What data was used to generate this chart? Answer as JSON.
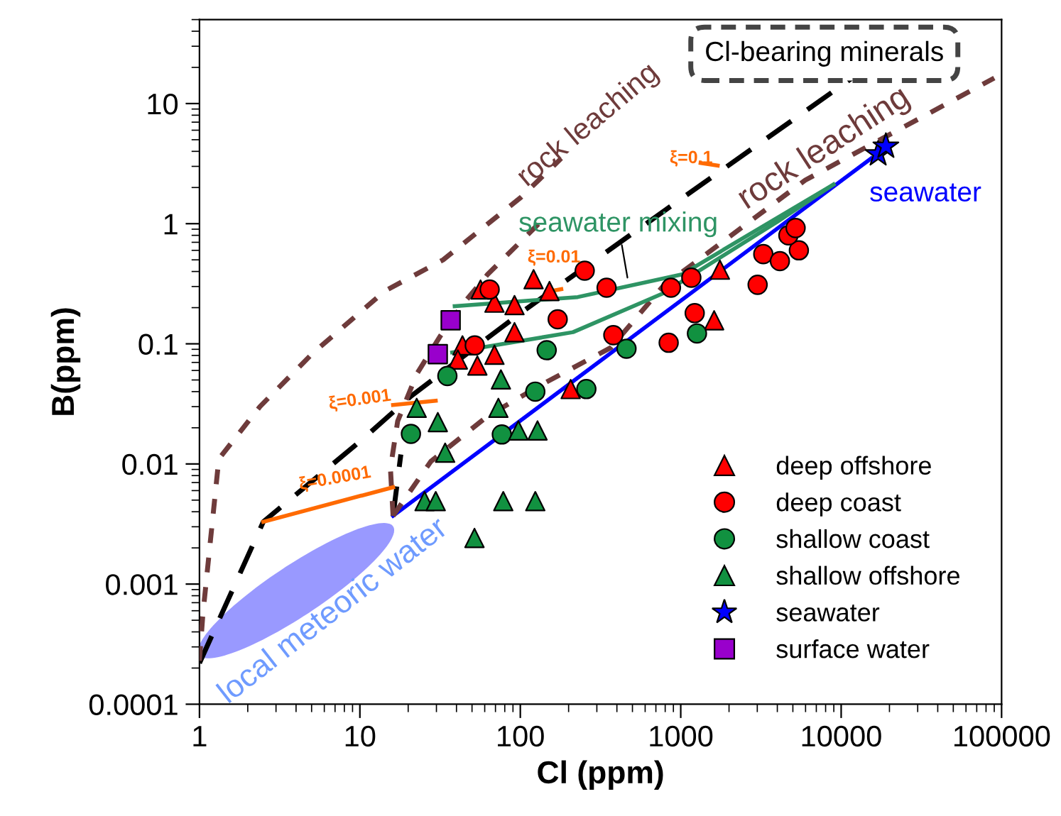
{
  "chart_data": {
    "type": "scatter",
    "xlabel": "Cl (ppm)",
    "ylabel": "B(ppm)",
    "log": "xy",
    "xlim": [
      1,
      100000
    ],
    "ylim": [
      0.0001,
      50
    ],
    "xticks": [
      1,
      10,
      100,
      1000,
      10000,
      100000
    ],
    "yticks": [
      0.0001,
      0.001,
      0.01,
      0.1,
      1,
      10
    ],
    "legend": "bottom right",
    "series": [
      {
        "type": "line",
        "color": "#0000ff",
        "line_style": "solid",
        "x": [
          16.1,
          15400
        ],
        "values": [
          0.0037,
          3.5
        ]
      },
      {
        "type": "line",
        "color": "#000000",
        "line_style": "dashed",
        "x": [
          1,
          2.5,
          10.7,
          21,
          100,
          1000,
          11700
        ],
        "values": [
          0.00022,
          0.0033,
          0.0166,
          0.037,
          0.18,
          1.6,
          16.3
        ]
      },
      {
        "type": "line",
        "color": "#000000",
        "line_style": "dashed",
        "x": [
          16.1,
          18
        ],
        "values": [
          0.0037,
          0.012
        ]
      },
      {
        "type": "line",
        "color": "#6e3b3b",
        "line_style": "dotted",
        "x": [
          1,
          1.05,
          1.32,
          2.38,
          5.06,
          14.3,
          33,
          101,
          180
        ],
        "values": [
          0.00023,
          0.00056,
          0.011,
          0.03,
          0.083,
          0.275,
          0.5,
          1.66,
          3.5
        ]
      },
      {
        "type": "line",
        "color": "#6e3b3b",
        "line_style": "dotted",
        "x": [
          16.1,
          15.5,
          17.2,
          22.6,
          31.7,
          44.6,
          62.5,
          140
        ],
        "values": [
          0.0037,
          0.0092,
          0.0227,
          0.056,
          0.116,
          0.22,
          0.378,
          1.1
        ]
      },
      {
        "type": "line",
        "color": "#6e3b3b",
        "line_style": "dotted",
        "x": [
          16.1,
          27.7,
          62.5,
          141,
          367,
          773,
          5960,
          90000
        ],
        "values": [
          0.0037,
          0.0105,
          0.025,
          0.047,
          0.093,
          0.3,
          2.3,
          16.3
        ]
      },
      {
        "type": "line",
        "color": "#2e9464",
        "line_style": "solid",
        "x": [
          39,
          228,
          1016,
          8960
        ],
        "values": [
          0.206,
          0.245,
          0.378,
          2.12
        ]
      },
      {
        "type": "line",
        "color": "#2e9464",
        "line_style": "solid",
        "x": [
          37.6,
          213,
          775,
          3960,
          8960
        ],
        "values": [
          0.0848,
          0.125,
          0.263,
          1.03,
          2.12
        ]
      },
      {
        "type": "line",
        "color": "#ff6a00",
        "line_style": "solid",
        "x": [
          2.5,
          16.1
        ],
        "values": [
          0.0033,
          0.0064
        ]
      },
      {
        "type": "line",
        "color": "#ff6a00",
        "line_style": "solid",
        "x": [
          16.1,
          29.7
        ],
        "values": [
          0.031,
          0.0336
        ]
      },
      {
        "type": "line",
        "color": "#ff6a00",
        "line_style": "solid",
        "x": [
          145,
          180
        ],
        "values": [
          0.27,
          0.285
        ]
      },
      {
        "type": "line",
        "color": "#ff6a00",
        "line_style": "solid",
        "x": [
          1330,
          1700
        ],
        "values": [
          3.2,
          3.05
        ]
      },
      {
        "type": "scatter",
        "name": "deep offshore",
        "marker": "triangle",
        "color": "#ff0000",
        "x": [
          121,
          56.5,
          69,
          92,
          152,
          92,
          43.6,
          69,
          40.8,
          54,
          206,
          1755,
          1615
        ],
        "values": [
          0.345,
          0.283,
          0.22,
          0.21,
          0.275,
          0.125,
          0.097,
          0.081,
          0.074,
          0.066,
          0.042,
          0.414,
          0.157
        ]
      },
      {
        "type": "scatter",
        "name": "deep coast",
        "marker": "circle",
        "color": "#ff0000",
        "x": [
          64.4,
          252,
          345,
          171,
          380,
          52,
          841,
          869,
          1164,
          1222,
          3015,
          3270,
          4150,
          5450,
          4690,
          5200
        ],
        "values": [
          0.283,
          0.406,
          0.293,
          0.16,
          0.118,
          0.097,
          0.102,
          0.293,
          0.355,
          0.18,
          0.31,
          0.558,
          0.488,
          0.6,
          0.8,
          0.92
        ]
      },
      {
        "type": "scatter",
        "name": "shallow coast",
        "marker": "circle",
        "color": "#119140",
        "x": [
          35.1,
          146,
          459,
          124,
          258,
          20.8,
          76.7,
          1262
        ],
        "values": [
          0.054,
          0.0885,
          0.091,
          0.04,
          0.042,
          0.0178,
          0.0176,
          0.122
        ]
      },
      {
        "type": "scatter",
        "name": "shallow offshore",
        "marker": "triangle",
        "color": "#119140",
        "x": [
          22.6,
          30.6,
          34,
          75.7,
          73,
          97.3,
          128,
          25.3,
          29.7,
          78.3,
          124,
          51.8
        ],
        "values": [
          0.0293,
          0.0223,
          0.0124,
          0.0505,
          0.0293,
          0.019,
          0.019,
          0.0049,
          0.0049,
          0.0049,
          0.0049,
          0.00242
        ]
      },
      {
        "type": "scatter",
        "name": "seawater",
        "marker": "star",
        "color": "#0000ff",
        "x": [
          17000,
          19000
        ],
        "values": [
          3.8,
          4.4
        ]
      },
      {
        "type": "scatter",
        "name": "surface water",
        "marker": "square",
        "color": "#9900cc",
        "x": [
          36.8,
          30.6
        ],
        "values": [
          0.157,
          0.082
        ]
      }
    ],
    "annotations": [
      "rock leaching",
      "rock leaching",
      {
        "text": "seawater mixing",
        "x": 470,
        "y": 0.33
      },
      "seawater",
      "local meteoric water",
      "Cl-bearing minerals",
      "ξ=0.1",
      "ξ=0.01",
      "ξ=0.001",
      "ξ=0.0001"
    ]
  }
}
